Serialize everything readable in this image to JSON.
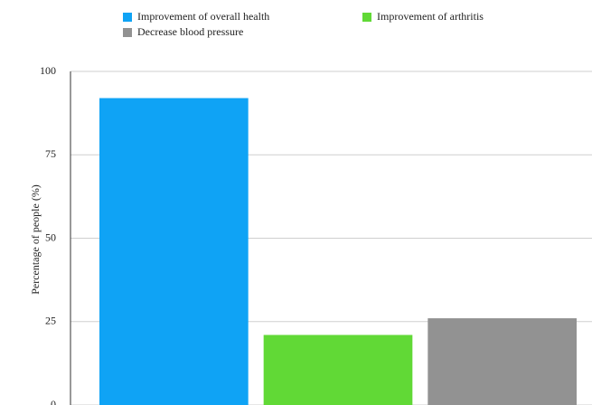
{
  "chart_data": {
    "type": "bar",
    "y_label": "Percentage of people (%)",
    "series": [
      {
        "name": "Improvement of overall health",
        "color": "#0fa3f5",
        "values": [
          92
        ]
      },
      {
        "name": "Improvement of arthritis",
        "color": "#61d936",
        "values": [
          21
        ]
      },
      {
        "name": "Decrease blood pressure",
        "color": "#929292",
        "values": [
          26
        ]
      }
    ],
    "ylim": [
      0,
      100
    ],
    "yticks": [
      0,
      25,
      50,
      75,
      100
    ],
    "grid": true
  }
}
